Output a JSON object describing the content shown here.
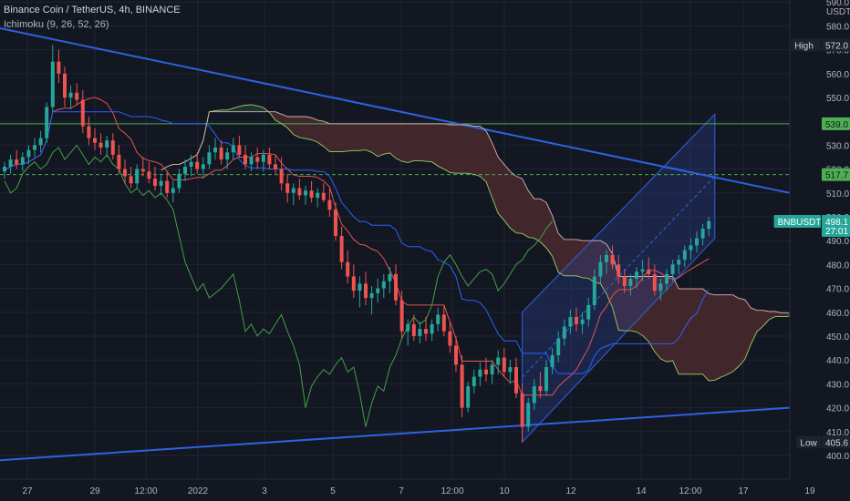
{
  "header": {
    "title": "Binance Coin / TetherUS, 4h, BINANCE",
    "indicator": "Ichimoku (9, 26, 52, 26)"
  },
  "colors": {
    "background": "#131722",
    "grid": "#1f2433",
    "up": "#26a69a",
    "down": "#ef5350",
    "trendline": "#2f62e0",
    "channel_fill": "#2a3f8f",
    "cloud_bear": "#4a2a2e",
    "cloud_bull": "#1f3a33",
    "lagging": "#43a047",
    "high_line": "#4caf50",
    "axis_text": "#b2b5be"
  },
  "chart_data": {
    "type": "candlestick",
    "symbol": "Binance Coin / TetherUS",
    "interval": "4h",
    "exchange": "BINANCE",
    "currency": "USDT",
    "ylim": [
      397,
      592
    ],
    "y_ticks": [
      400,
      410,
      420,
      430,
      440,
      450,
      460,
      470,
      480,
      490,
      500,
      510,
      520,
      530,
      540,
      550,
      560,
      570,
      580,
      590
    ],
    "x_ticks": [
      "27",
      "29",
      "12:00",
      "2022",
      "3",
      "5",
      "7",
      "12:00",
      "10",
      "12",
      "14",
      "12:00",
      "17",
      "19"
    ],
    "price_labels": [
      {
        "label": "High",
        "value": "572.0"
      },
      {
        "label": "",
        "value": "539.0"
      },
      {
        "label": "",
        "value": "517.7"
      },
      {
        "label": "BNBUSDT",
        "value": "498.1",
        "sub": "27:01"
      },
      {
        "label": "Low",
        "value": "405.6"
      }
    ],
    "horizontal_lines": [
      {
        "value": 539.0,
        "style": "solid"
      },
      {
        "value": 517.7,
        "style": "dashed"
      }
    ],
    "trendlines": [
      {
        "from": [
          0,
          579
        ],
        "to": [
          140,
          510
        ]
      },
      {
        "from": [
          0,
          398
        ],
        "to": [
          140,
          420
        ]
      }
    ],
    "channel": {
      "start": 86,
      "end": 118,
      "upper": [
        460,
        543
      ],
      "lower": [
        405.6,
        491
      ]
    },
    "candles": [
      [
        519,
        523,
        516,
        521
      ],
      [
        521,
        526,
        518,
        524
      ],
      [
        524,
        528,
        520,
        522
      ],
      [
        522,
        527,
        519,
        525
      ],
      [
        525,
        530,
        522,
        528
      ],
      [
        528,
        533,
        525,
        530
      ],
      [
        530,
        536,
        527,
        533
      ],
      [
        533,
        548,
        531,
        546
      ],
      [
        546,
        572,
        544,
        565
      ],
      [
        565,
        570,
        556,
        560
      ],
      [
        560,
        563,
        546,
        550
      ],
      [
        550,
        555,
        545,
        552
      ],
      [
        552,
        556,
        547,
        549
      ],
      [
        549,
        553,
        535,
        538
      ],
      [
        538,
        542,
        530,
        533
      ],
      [
        533,
        537,
        528,
        531
      ],
      [
        531,
        535,
        526,
        529
      ],
      [
        529,
        534,
        525,
        532
      ],
      [
        532,
        535,
        524,
        526
      ],
      [
        526,
        530,
        518,
        520
      ],
      [
        520,
        524,
        514,
        517
      ],
      [
        517,
        521,
        512,
        514
      ],
      [
        514,
        522,
        512,
        520
      ],
      [
        520,
        525,
        517,
        519
      ],
      [
        519,
        523,
        514,
        516
      ],
      [
        516,
        521,
        511,
        513
      ],
      [
        513,
        518,
        509,
        515
      ],
      [
        515,
        519,
        508,
        510
      ],
      [
        510,
        515,
        506,
        512
      ],
      [
        512,
        520,
        510,
        518
      ],
      [
        518,
        524,
        515,
        521
      ],
      [
        521,
        526,
        517,
        523
      ],
      [
        523,
        527,
        518,
        520
      ],
      [
        520,
        525,
        516,
        522
      ],
      [
        522,
        530,
        520,
        527
      ],
      [
        527,
        533,
        524,
        529
      ],
      [
        529,
        532,
        522,
        524
      ],
      [
        524,
        529,
        520,
        527
      ],
      [
        527,
        533,
        524,
        530
      ],
      [
        530,
        534,
        525,
        526
      ],
      [
        526,
        530,
        520,
        522
      ],
      [
        522,
        527,
        519,
        525
      ],
      [
        525,
        529,
        520,
        523
      ],
      [
        523,
        528,
        519,
        526
      ],
      [
        526,
        529,
        520,
        522
      ],
      [
        522,
        526,
        518,
        520
      ],
      [
        520,
        525,
        511,
        514
      ],
      [
        514,
        518,
        506,
        510
      ],
      [
        510,
        514,
        505,
        512
      ],
      [
        512,
        516,
        507,
        509
      ],
      [
        509,
        513,
        505,
        511
      ],
      [
        511,
        515,
        506,
        508
      ],
      [
        508,
        512,
        504,
        510
      ],
      [
        510,
        514,
        506,
        507
      ],
      [
        507,
        512,
        500,
        503
      ],
      [
        503,
        506,
        490,
        492
      ],
      [
        492,
        496,
        478,
        481
      ],
      [
        481,
        486,
        472,
        475
      ],
      [
        475,
        480,
        466,
        469
      ],
      [
        469,
        475,
        462,
        472
      ],
      [
        472,
        477,
        463,
        466
      ],
      [
        466,
        471,
        459,
        468
      ],
      [
        468,
        474,
        464,
        470
      ],
      [
        470,
        476,
        466,
        473
      ],
      [
        473,
        479,
        468,
        476
      ],
      [
        476,
        480,
        463,
        465
      ],
      [
        465,
        469,
        449,
        452
      ],
      [
        452,
        457,
        446,
        455
      ],
      [
        455,
        459,
        448,
        450
      ],
      [
        450,
        456,
        447,
        453
      ],
      [
        453,
        458,
        448,
        451
      ],
      [
        451,
        457,
        448,
        455
      ],
      [
        455,
        462,
        452,
        459
      ],
      [
        459,
        463,
        450,
        452
      ],
      [
        452,
        456,
        443,
        446
      ],
      [
        446,
        450,
        435,
        438
      ],
      [
        438,
        442,
        416,
        420
      ],
      [
        420,
        431,
        418,
        429
      ],
      [
        429,
        436,
        426,
        433
      ],
      [
        433,
        439,
        429,
        436
      ],
      [
        436,
        441,
        431,
        434
      ],
      [
        434,
        440,
        430,
        438
      ],
      [
        438,
        444,
        434,
        441
      ],
      [
        441,
        445,
        433,
        435
      ],
      [
        435,
        440,
        430,
        437
      ],
      [
        437,
        441,
        424,
        426
      ],
      [
        426,
        430,
        405.6,
        412
      ],
      [
        412,
        424,
        410,
        422
      ],
      [
        422,
        432,
        419,
        429
      ],
      [
        429,
        435,
        424,
        427
      ],
      [
        427,
        440,
        425,
        437
      ],
      [
        437,
        445,
        434,
        442
      ],
      [
        442,
        452,
        439,
        449
      ],
      [
        449,
        457,
        446,
        454
      ],
      [
        454,
        461,
        451,
        458
      ],
      [
        458,
        462,
        452,
        455
      ],
      [
        455,
        460,
        451,
        457
      ],
      [
        457,
        466,
        454,
        463
      ],
      [
        463,
        478,
        461,
        475
      ],
      [
        475,
        484,
        472,
        481
      ],
      [
        481,
        486,
        476,
        484
      ],
      [
        484,
        488,
        478,
        480
      ],
      [
        480,
        484,
        472,
        475
      ],
      [
        475,
        478,
        468,
        471
      ],
      [
        471,
        476,
        467,
        474
      ],
      [
        474,
        479,
        470,
        477
      ],
      [
        477,
        482,
        473,
        478
      ],
      [
        478,
        483,
        474,
        476
      ],
      [
        476,
        480,
        467,
        469
      ],
      [
        469,
        474,
        465,
        472
      ],
      [
        472,
        478,
        469,
        476
      ],
      [
        476,
        482,
        473,
        480
      ],
      [
        480,
        484,
        476,
        482
      ],
      [
        482,
        488,
        479,
        486
      ],
      [
        486,
        491,
        482,
        488
      ],
      [
        488,
        494,
        485,
        491
      ],
      [
        491,
        497,
        488,
        495
      ],
      [
        495,
        500,
        492,
        498.1
      ]
    ]
  }
}
